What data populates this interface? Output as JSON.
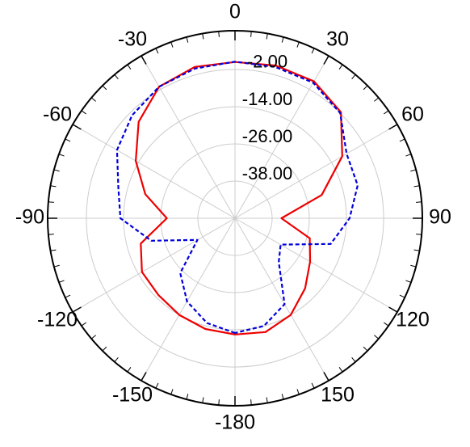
{
  "chart_data": {
    "type": "polar",
    "theta": [
      -180,
      -165,
      -150,
      -135,
      -120,
      -105,
      -90,
      -75,
      -60,
      -45,
      -30,
      -15,
      0,
      15,
      30,
      45,
      60,
      75,
      90,
      105,
      120,
      135,
      150,
      165
    ],
    "series": [
      {
        "color": "#ee0000",
        "dash": false,
        "values": [
          -12.5,
          -13,
          -14,
          -15,
          -15.3,
          -18.5,
          -28,
          -20,
          -13,
          -6,
          -1,
          0.5,
          0.4,
          1,
          1,
          -1.6,
          -10,
          -21,
          -35,
          -25,
          -22,
          -18,
          -14,
          -12
        ]
      },
      {
        "color": "#0000dd",
        "dash": true,
        "values": [
          -13,
          -15,
          -19,
          -25,
          -36,
          -22,
          -13,
          -11,
          -6,
          -3,
          -1,
          0,
          0.5,
          0.5,
          0.5,
          -2,
          -8.4,
          -9,
          -13,
          -18,
          -33,
          -30,
          -18,
          -14
        ]
      }
    ],
    "rlim": [
      -50,
      10.5
    ],
    "rticks": [
      {
        "value": -2,
        "label": "-2.00"
      },
      {
        "value": -14,
        "label": "-14.00"
      },
      {
        "value": -26,
        "label": "-26.00"
      },
      {
        "value": -38,
        "label": "-38.00"
      }
    ],
    "thetaticks": [
      0,
      30,
      60,
      90,
      120,
      150,
      -180,
      -150,
      -120,
      -90,
      -60,
      -30
    ],
    "grid": true
  }
}
